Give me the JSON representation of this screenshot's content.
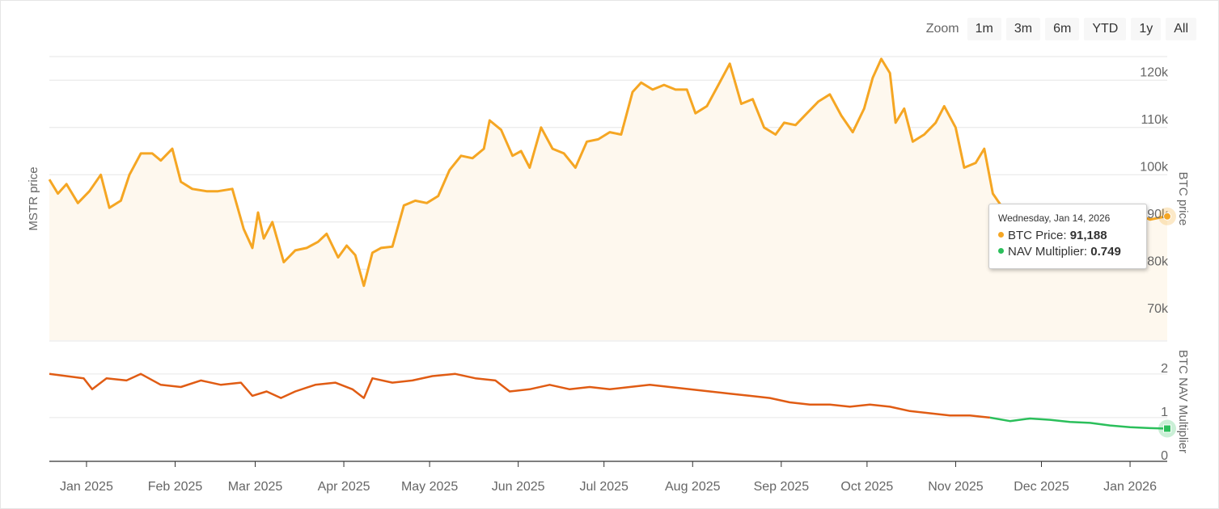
{
  "zoom": {
    "label": "Zoom",
    "buttons": [
      "1m",
      "3m",
      "6m",
      "YTD",
      "1y",
      "All"
    ]
  },
  "tooltip": {
    "date": "Wednesday, Jan 14, 2026",
    "rows": [
      {
        "label": "BTC Price",
        "value": "91,188",
        "color": "#F5A623"
      },
      {
        "label": "NAV Multiplier",
        "value": "0.749",
        "color": "#2BBF5B"
      }
    ]
  },
  "chart_data": {
    "type": "line",
    "colors": {
      "btc_line": "#F5A623",
      "btc_fill": "#FEF8EE",
      "nav_line": "#E05C14",
      "nav_recent": "#2BBF5B",
      "grid": "#e6e6e6"
    },
    "x_tick_labels": [
      "Jan 2025",
      "Feb 2025",
      "Mar 2025",
      "Apr 2025",
      "May 2025",
      "Jun 2025",
      "Jul 2025",
      "Aug 2025",
      "Sep 2025",
      "Oct 2025",
      "Nov 2025",
      "Dec 2025",
      "Jan 2026"
    ],
    "x_range": [
      "2024-12-19",
      "2026-01-14"
    ],
    "panels": [
      {
        "name": "BTC Price",
        "y_axis_title": "BTC price",
        "left_axis_title": "MSTR price",
        "ylim": [
          65000,
          125000
        ],
        "y_ticks": [
          70000,
          80000,
          90000,
          100000,
          110000,
          120000
        ],
        "y_tick_labels": [
          "70k",
          "80k",
          "90k",
          "100k",
          "110k",
          "120k"
        ],
        "series_points": [
          [
            "2024-12-19",
            99000
          ],
          [
            "2024-12-22",
            96000
          ],
          [
            "2024-12-25",
            98000
          ],
          [
            "2024-12-29",
            94000
          ],
          [
            "2025-01-02",
            96500
          ],
          [
            "2025-01-06",
            100000
          ],
          [
            "2025-01-09",
            93000
          ],
          [
            "2025-01-13",
            94500
          ],
          [
            "2025-01-16",
            100000
          ],
          [
            "2025-01-20",
            104500
          ],
          [
            "2025-01-24",
            104500
          ],
          [
            "2025-01-27",
            103000
          ],
          [
            "2025-01-31",
            105500
          ],
          [
            "2025-02-03",
            98500
          ],
          [
            "2025-02-07",
            97000
          ],
          [
            "2025-02-12",
            96500
          ],
          [
            "2025-02-16",
            96500
          ],
          [
            "2025-02-21",
            97000
          ],
          [
            "2025-02-25",
            88500
          ],
          [
            "2025-02-28",
            84500
          ],
          [
            "2025-03-02",
            92000
          ],
          [
            "2025-03-04",
            86500
          ],
          [
            "2025-03-07",
            90000
          ],
          [
            "2025-03-11",
            81500
          ],
          [
            "2025-03-15",
            84000
          ],
          [
            "2025-03-19",
            84500
          ],
          [
            "2025-03-23",
            85800
          ],
          [
            "2025-03-26",
            87500
          ],
          [
            "2025-03-30",
            82500
          ],
          [
            "2025-04-02",
            85000
          ],
          [
            "2025-04-05",
            83000
          ],
          [
            "2025-04-08",
            76500
          ],
          [
            "2025-04-11",
            83500
          ],
          [
            "2025-04-14",
            84500
          ],
          [
            "2025-04-18",
            84800
          ],
          [
            "2025-04-22",
            93500
          ],
          [
            "2025-04-26",
            94500
          ],
          [
            "2025-04-30",
            94000
          ],
          [
            "2025-05-04",
            95500
          ],
          [
            "2025-05-08",
            101000
          ],
          [
            "2025-05-12",
            104000
          ],
          [
            "2025-05-16",
            103500
          ],
          [
            "2025-05-20",
            105500
          ],
          [
            "2025-05-22",
            111500
          ],
          [
            "2025-05-26",
            109500
          ],
          [
            "2025-05-30",
            104000
          ],
          [
            "2025-06-02",
            105000
          ],
          [
            "2025-06-05",
            101500
          ],
          [
            "2025-06-09",
            110000
          ],
          [
            "2025-06-13",
            105500
          ],
          [
            "2025-06-17",
            104500
          ],
          [
            "2025-06-21",
            101500
          ],
          [
            "2025-06-25",
            107000
          ],
          [
            "2025-06-29",
            107500
          ],
          [
            "2025-07-03",
            109000
          ],
          [
            "2025-07-07",
            108500
          ],
          [
            "2025-07-11",
            117500
          ],
          [
            "2025-07-14",
            119500
          ],
          [
            "2025-07-18",
            118000
          ],
          [
            "2025-07-22",
            119000
          ],
          [
            "2025-07-26",
            118000
          ],
          [
            "2025-07-30",
            118000
          ],
          [
            "2025-08-02",
            113000
          ],
          [
            "2025-08-06",
            114500
          ],
          [
            "2025-08-10",
            119000
          ],
          [
            "2025-08-14",
            123500
          ],
          [
            "2025-08-18",
            115000
          ],
          [
            "2025-08-22",
            116000
          ],
          [
            "2025-08-26",
            110000
          ],
          [
            "2025-08-30",
            108500
          ],
          [
            "2025-09-02",
            111000
          ],
          [
            "2025-09-06",
            110500
          ],
          [
            "2025-09-10",
            113000
          ],
          [
            "2025-09-14",
            115500
          ],
          [
            "2025-09-18",
            117000
          ],
          [
            "2025-09-22",
            112500
          ],
          [
            "2025-09-26",
            109000
          ],
          [
            "2025-09-30",
            114000
          ],
          [
            "2025-10-03",
            120500
          ],
          [
            "2025-10-06",
            124500
          ],
          [
            "2025-10-09",
            121500
          ],
          [
            "2025-10-11",
            111000
          ],
          [
            "2025-10-14",
            114000
          ],
          [
            "2025-10-17",
            107000
          ],
          [
            "2025-10-21",
            108500
          ],
          [
            "2025-10-25",
            111000
          ],
          [
            "2025-10-28",
            114500
          ],
          [
            "2025-11-01",
            110000
          ],
          [
            "2025-11-04",
            101500
          ],
          [
            "2025-11-08",
            102500
          ],
          [
            "2025-11-11",
            105500
          ],
          [
            "2025-11-14",
            96000
          ],
          [
            "2025-11-18",
            92500
          ],
          [
            "2025-11-21",
            84500
          ],
          [
            "2025-11-25",
            87500
          ],
          [
            "2025-11-29",
            91000
          ],
          [
            "2025-12-03",
            92500
          ],
          [
            "2025-12-07",
            89500
          ],
          [
            "2025-12-11",
            92000
          ],
          [
            "2025-12-15",
            86500
          ],
          [
            "2025-12-19",
            88000
          ],
          [
            "2025-12-23",
            87500
          ],
          [
            "2025-12-27",
            87500
          ],
          [
            "2025-12-31",
            88000
          ],
          [
            "2026-01-04",
            91500
          ],
          [
            "2026-01-08",
            90500
          ],
          [
            "2026-01-12",
            91000
          ],
          [
            "2026-01-14",
            91188
          ]
        ]
      },
      {
        "name": "NAV Multiplier",
        "y_axis_title": "BTC NAV Multiplier",
        "ylim": [
          0,
          2.2
        ],
        "y_ticks": [
          0,
          1,
          2
        ],
        "y_tick_labels": [
          "0",
          "1",
          "2"
        ],
        "highlight_from": "2025-11-13",
        "series_points": [
          [
            "2024-12-19",
            2.0
          ],
          [
            "2024-12-25",
            1.95
          ],
          [
            "2024-12-31",
            1.9
          ],
          [
            "2025-01-03",
            1.65
          ],
          [
            "2025-01-08",
            1.9
          ],
          [
            "2025-01-15",
            1.85
          ],
          [
            "2025-01-20",
            2.0
          ],
          [
            "2025-01-27",
            1.75
          ],
          [
            "2025-02-03",
            1.7
          ],
          [
            "2025-02-10",
            1.85
          ],
          [
            "2025-02-17",
            1.75
          ],
          [
            "2025-02-24",
            1.8
          ],
          [
            "2025-02-28",
            1.5
          ],
          [
            "2025-03-05",
            1.6
          ],
          [
            "2025-03-10",
            1.45
          ],
          [
            "2025-03-15",
            1.6
          ],
          [
            "2025-03-22",
            1.75
          ],
          [
            "2025-03-29",
            1.8
          ],
          [
            "2025-04-04",
            1.65
          ],
          [
            "2025-04-08",
            1.45
          ],
          [
            "2025-04-11",
            1.9
          ],
          [
            "2025-04-18",
            1.8
          ],
          [
            "2025-04-25",
            1.85
          ],
          [
            "2025-05-02",
            1.95
          ],
          [
            "2025-05-10",
            2.0
          ],
          [
            "2025-05-17",
            1.9
          ],
          [
            "2025-05-24",
            1.85
          ],
          [
            "2025-05-29",
            1.6
          ],
          [
            "2025-06-05",
            1.65
          ],
          [
            "2025-06-12",
            1.75
          ],
          [
            "2025-06-19",
            1.65
          ],
          [
            "2025-06-26",
            1.7
          ],
          [
            "2025-07-03",
            1.65
          ],
          [
            "2025-07-10",
            1.7
          ],
          [
            "2025-07-17",
            1.75
          ],
          [
            "2025-07-24",
            1.7
          ],
          [
            "2025-07-31",
            1.65
          ],
          [
            "2025-08-07",
            1.6
          ],
          [
            "2025-08-14",
            1.55
          ],
          [
            "2025-08-21",
            1.5
          ],
          [
            "2025-08-28",
            1.45
          ],
          [
            "2025-09-04",
            1.35
          ],
          [
            "2025-09-11",
            1.3
          ],
          [
            "2025-09-18",
            1.3
          ],
          [
            "2025-09-25",
            1.25
          ],
          [
            "2025-10-02",
            1.3
          ],
          [
            "2025-10-09",
            1.25
          ],
          [
            "2025-10-16",
            1.15
          ],
          [
            "2025-10-23",
            1.1
          ],
          [
            "2025-10-30",
            1.05
          ],
          [
            "2025-11-06",
            1.05
          ],
          [
            "2025-11-13",
            1.0
          ],
          [
            "2025-11-20",
            0.92
          ],
          [
            "2025-11-27",
            0.98
          ],
          [
            "2025-12-04",
            0.95
          ],
          [
            "2025-12-11",
            0.9
          ],
          [
            "2025-12-18",
            0.88
          ],
          [
            "2025-12-25",
            0.82
          ],
          [
            "2026-01-01",
            0.78
          ],
          [
            "2026-01-08",
            0.76
          ],
          [
            "2026-01-14",
            0.749
          ]
        ]
      }
    ]
  }
}
